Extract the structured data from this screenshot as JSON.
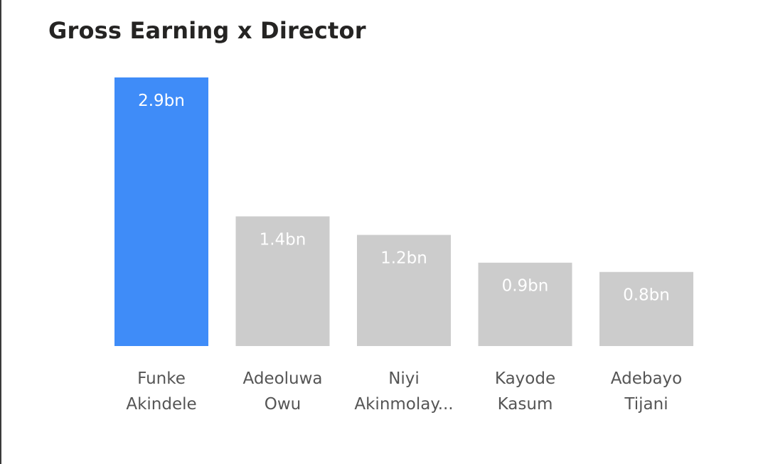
{
  "chart_data": {
    "type": "bar",
    "title": "Gross Earning x Director",
    "xlabel": "",
    "ylabel": "",
    "categories": [
      [
        "Funke",
        "Akindele"
      ],
      [
        "Adeoluwa",
        "Owu"
      ],
      [
        "Niyi",
        "Akinmolay..."
      ],
      [
        "Kayode",
        "Kasum"
      ],
      [
        "Adebayo",
        "Tijani"
      ]
    ],
    "values": [
      2.9,
      1.4,
      1.2,
      0.9,
      0.8
    ],
    "value_labels": [
      "2.9bn",
      "1.4bn",
      "1.2bn",
      "0.9bn",
      "0.8bn"
    ],
    "unit": "bn",
    "ylim": [
      0,
      2.9
    ],
    "grid": false,
    "legend": "none",
    "colors": {
      "highlight": "#3f8cf8",
      "default": "#cccccc"
    },
    "highlight_index": 0
  }
}
